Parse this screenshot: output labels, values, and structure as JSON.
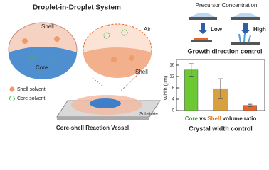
{
  "header": {
    "title": "Droplet-in-Droplet System"
  },
  "left_zoom": {
    "shell": "Shell",
    "core": "Core"
  },
  "right_zoom": {
    "air": "Air",
    "shell": "Shell"
  },
  "legend": {
    "shell_solvent": "Shell solvent",
    "core_solvent": "Core solvent"
  },
  "vessel": {
    "substrate": "Substrate",
    "caption": "Core-shell Reaction Vessel"
  },
  "precursor": {
    "title": "Precursor Concentration",
    "low": "Low",
    "high": "High",
    "caption": "Growth direction control"
  },
  "chart": {
    "type": "bar",
    "ylabel": "Width (μm)",
    "ylim": [
      0,
      18
    ],
    "yticks": [
      0,
      4,
      8,
      12,
      16
    ],
    "values": [
      14.3,
      7.7,
      1.8
    ],
    "errors": [
      2.2,
      3.5,
      0.4
    ],
    "colors": [
      "#6cc934",
      "#d9a03f",
      "#e8642c"
    ],
    "xlabel": [
      {
        "text": "Core",
        "color": "#3aa626"
      },
      {
        "text": " vs ",
        "color": "#222222"
      },
      {
        "text": "Shell",
        "color": "#e07a1f"
      },
      {
        "text": " volume ratio",
        "color": "#222222"
      }
    ],
    "caption": "Crystal width control"
  }
}
